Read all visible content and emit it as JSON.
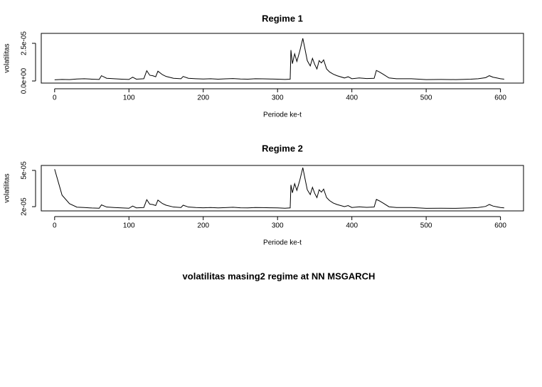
{
  "title": "volatilitas masing2 regime at NN MSGARCH",
  "chart_data": [
    {
      "type": "line",
      "title": "Regime 1",
      "xlabel": "Periode ke-t",
      "ylabel": "volatilitas",
      "color": "#000000",
      "xlim": [
        -18,
        631
      ],
      "xticks": [
        0,
        100,
        200,
        300,
        400,
        500,
        600
      ],
      "ylim": [
        -1.4e-06,
        3.16e-05
      ],
      "yticks": [
        {
          "value": 0,
          "label": "0.0e+00"
        },
        {
          "value": 2.5e-05,
          "label": "2.5e-05"
        }
      ],
      "x": [
        0,
        10,
        20,
        30,
        40,
        50,
        60,
        63,
        70,
        80,
        90,
        100,
        105,
        110,
        120,
        124,
        128,
        132,
        136,
        139,
        145,
        150,
        160,
        170,
        173,
        180,
        190,
        200,
        210,
        220,
        230,
        240,
        250,
        260,
        270,
        280,
        290,
        300,
        310,
        317,
        318,
        320,
        323,
        326,
        330,
        334,
        337,
        340,
        344,
        347,
        350,
        353,
        356,
        359,
        362,
        366,
        370,
        375,
        380,
        390,
        395,
        400,
        410,
        420,
        430,
        433,
        437,
        442,
        450,
        460,
        480,
        500,
        520,
        540,
        560,
        570,
        580,
        585,
        590,
        595,
        600,
        605
      ],
      "values": [
        8e-07,
        1e-06,
        9e-07,
        1.3e-06,
        1.5e-06,
        1.2e-06,
        1e-06,
        3.5e-06,
        1.8e-06,
        1.5e-06,
        1.2e-06,
        1e-06,
        2.5e-06,
        1.2e-06,
        1.5e-06,
        6.8e-06,
        3.8e-06,
        3.5e-06,
        2.8e-06,
        6.5e-06,
        4.2e-06,
        3e-06,
        1.8e-06,
        1.5e-06,
        3e-06,
        1.8e-06,
        1.5e-06,
        1.3e-06,
        1.5e-06,
        1.2e-06,
        1.4e-06,
        1.6e-06,
        1.3e-06,
        1.2e-06,
        1.5e-06,
        1.4e-06,
        1.3e-06,
        1.2e-06,
        1e-06,
        1.2e-06,
        2.05e-05,
        1.15e-05,
        1.8e-05,
        1.3e-05,
        2e-05,
        2.83e-05,
        2.1e-05,
        1.35e-05,
        1e-05,
        1.5e-05,
        1.1e-05,
        8e-06,
        1.35e-05,
        1.2e-05,
        1.4e-05,
        8e-06,
        6e-06,
        4.5e-06,
        3.5e-06,
        2e-06,
        2.8e-06,
        1.5e-06,
        2e-06,
        1.6e-06,
        1.8e-06,
        7e-06,
        6e-06,
        4.5e-06,
        2e-06,
        1.5e-06,
        1.5e-06,
        9e-07,
        1e-06,
        9e-07,
        1.2e-06,
        1.5e-06,
        2.2e-06,
        3.5e-06,
        2.5e-06,
        2e-06,
        1.5e-06,
        1.2e-06
      ]
    },
    {
      "type": "line",
      "title": "Regime 2",
      "xlabel": "Periode ke-t",
      "ylabel": "volatilitas",
      "color": "#000000",
      "xlim": [
        -18,
        631
      ],
      "xticks": [
        0,
        100,
        200,
        300,
        400,
        500,
        600
      ],
      "ylim": [
        1.65e-05,
        5.41e-05
      ],
      "yticks": [
        {
          "value": 2e-05,
          "label": "2e-05"
        },
        {
          "value": 5e-05,
          "label": "5e-05"
        }
      ],
      "x": [
        0,
        10,
        20,
        30,
        40,
        50,
        60,
        63,
        70,
        80,
        90,
        100,
        105,
        110,
        120,
        124,
        128,
        132,
        136,
        139,
        145,
        150,
        160,
        170,
        173,
        180,
        190,
        200,
        210,
        220,
        230,
        240,
        250,
        260,
        270,
        280,
        290,
        300,
        310,
        317,
        318,
        320,
        323,
        326,
        330,
        334,
        337,
        340,
        344,
        347,
        350,
        353,
        356,
        359,
        362,
        366,
        370,
        375,
        380,
        390,
        395,
        400,
        410,
        420,
        430,
        433,
        437,
        442,
        450,
        460,
        480,
        500,
        520,
        540,
        560,
        570,
        580,
        585,
        590,
        595,
        600,
        605
      ],
      "values": [
        5.1e-05,
        2.95e-05,
        2.25e-05,
        1.96e-05,
        1.93e-05,
        1.89e-05,
        1.87e-05,
        2.15e-05,
        1.97e-05,
        1.93e-05,
        1.9e-05,
        1.87e-05,
        2.05e-05,
        1.9e-05,
        1.93e-05,
        2.58e-05,
        2.21e-05,
        2.18e-05,
        2.09e-05,
        2.54e-05,
        2.26e-05,
        2.12e-05,
        1.97e-05,
        1.93e-05,
        2.12e-05,
        1.97e-05,
        1.93e-05,
        1.91e-05,
        1.93e-05,
        1.9e-05,
        1.92e-05,
        1.95e-05,
        1.91e-05,
        1.9e-05,
        1.93e-05,
        1.92e-05,
        1.91e-05,
        1.9e-05,
        1.87e-05,
        1.9e-05,
        3.8e-05,
        3.15e-05,
        3.9e-05,
        3.35e-05,
        4.2e-05,
        5.23e-05,
        4.3e-05,
        3.4e-05,
        3e-05,
        3.6e-05,
        3.1e-05,
        2.75e-05,
        3.4e-05,
        3.2e-05,
        3.45e-05,
        2.75e-05,
        2.5e-05,
        2.3e-05,
        2.18e-05,
        2e-05,
        2.09e-05,
        1.93e-05,
        1.99e-05,
        1.94e-05,
        1.97e-05,
        2.6e-05,
        2.48e-05,
        2.3e-05,
        1.99e-05,
        1.93e-05,
        1.93e-05,
        1.86e-05,
        1.87e-05,
        1.86e-05,
        1.9e-05,
        1.93e-05,
        2.02e-05,
        2.18e-05,
        2.05e-05,
        1.99e-05,
        1.93e-05,
        1.9e-05
      ]
    }
  ]
}
